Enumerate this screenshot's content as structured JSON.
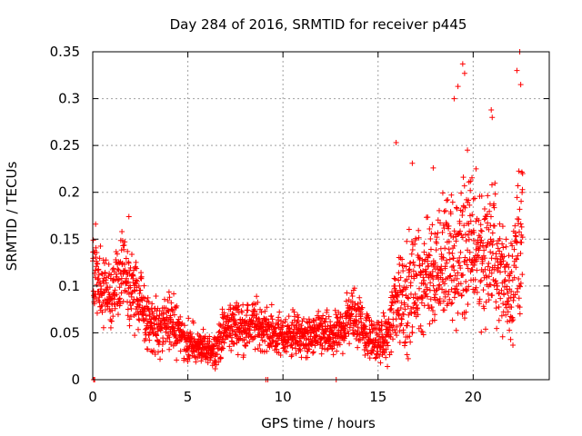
{
  "chart_data": {
    "type": "scatter",
    "title": "Day 284 of 2016, SRMTID for receiver p445",
    "xlabel": "GPS time / hours",
    "ylabel": "SRMTID / TECUs",
    "xlim": [
      0,
      24
    ],
    "ylim": [
      0,
      0.35
    ],
    "xticks": [
      0,
      5,
      10,
      15,
      20
    ],
    "xtick_labels": [
      "0",
      "5",
      "10",
      "15",
      "20"
    ],
    "yticks": [
      0,
      0.05,
      0.1,
      0.15,
      0.2,
      0.25,
      0.3,
      0.35
    ],
    "ytick_labels": [
      "0",
      "0.05",
      "0.1",
      "0.15",
      "0.2",
      "0.25",
      "0.3",
      "0.35"
    ],
    "grid": true,
    "marker": "+",
    "series_color": "#ff0000",
    "series": [
      {
        "name": "SRMTID",
        "profile": {
          "x": [
            0.0,
            0.5,
            1.0,
            1.5,
            2.0,
            2.5,
            3.0,
            3.5,
            4.0,
            4.5,
            5.0,
            5.5,
            6.0,
            6.5,
            7.0,
            7.5,
            8.0,
            8.5,
            9.0,
            9.5,
            10.0,
            10.5,
            11.0,
            11.5,
            12.0,
            12.5,
            13.0,
            13.5,
            14.0,
            14.5,
            15.0,
            15.5,
            16.0,
            16.5,
            17.0,
            17.5,
            18.0,
            18.5,
            19.0,
            19.5,
            20.0,
            20.5,
            21.0,
            21.5,
            22.0,
            22.5
          ],
          "median": [
            0.11,
            0.1,
            0.09,
            0.11,
            0.1,
            0.08,
            0.06,
            0.055,
            0.06,
            0.055,
            0.04,
            0.035,
            0.03,
            0.035,
            0.055,
            0.06,
            0.055,
            0.06,
            0.055,
            0.05,
            0.045,
            0.05,
            0.045,
            0.045,
            0.05,
            0.045,
            0.05,
            0.07,
            0.065,
            0.045,
            0.04,
            0.045,
            0.09,
            0.09,
            0.1,
            0.11,
            0.12,
            0.13,
            0.12,
            0.14,
            0.14,
            0.13,
            0.14,
            0.11,
            0.1,
            0.16
          ],
          "spread": [
            0.035,
            0.03,
            0.03,
            0.035,
            0.035,
            0.03,
            0.025,
            0.022,
            0.025,
            0.022,
            0.018,
            0.015,
            0.013,
            0.015,
            0.022,
            0.022,
            0.02,
            0.022,
            0.02,
            0.02,
            0.018,
            0.02,
            0.018,
            0.018,
            0.02,
            0.018,
            0.02,
            0.025,
            0.025,
            0.018,
            0.018,
            0.02,
            0.05,
            0.05,
            0.045,
            0.05,
            0.05,
            0.06,
            0.06,
            0.07,
            0.06,
            0.06,
            0.06,
            0.05,
            0.05,
            0.08
          ]
        },
        "n_points": 2300,
        "x_end": 22.6,
        "peaks": [
          {
            "x": 0.15,
            "y": 0.166
          },
          {
            "x": 1.9,
            "y": 0.174
          },
          {
            "x": 15.95,
            "y": 0.253
          },
          {
            "x": 16.8,
            "y": 0.231
          },
          {
            "x": 17.9,
            "y": 0.226
          },
          {
            "x": 19.0,
            "y": 0.3
          },
          {
            "x": 19.2,
            "y": 0.313
          },
          {
            "x": 19.45,
            "y": 0.337
          },
          {
            "x": 19.55,
            "y": 0.327
          },
          {
            "x": 19.7,
            "y": 0.245
          },
          {
            "x": 20.15,
            "y": 0.225
          },
          {
            "x": 20.45,
            "y": 0.196
          },
          {
            "x": 20.95,
            "y": 0.288
          },
          {
            "x": 21.0,
            "y": 0.28
          },
          {
            "x": 22.3,
            "y": 0.33
          },
          {
            "x": 22.45,
            "y": 0.35
          },
          {
            "x": 22.5,
            "y": 0.315
          },
          {
            "x": 22.6,
            "y": 0.22
          }
        ],
        "zero_points": [
          {
            "x": 0.05,
            "y": 0
          },
          {
            "x": 0.1,
            "y": 0
          },
          {
            "x": 9.1,
            "y": 0
          },
          {
            "x": 9.2,
            "y": 0
          },
          {
            "x": 12.8,
            "y": 0
          }
        ]
      }
    ]
  }
}
